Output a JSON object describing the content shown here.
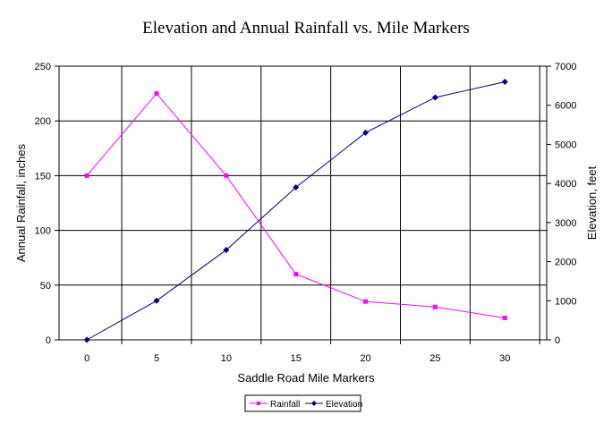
{
  "chart_data": {
    "type": "line",
    "title": "Elevation and Annual Rainfall vs. Mile Markers",
    "xlabel": "Saddle Road Mile Markers",
    "ylabel": "Annual Rainfall, inches",
    "y2label": "Elevation, feet",
    "x": [
      0,
      5,
      10,
      15,
      20,
      25,
      30
    ],
    "x_ticks": [
      0,
      5,
      10,
      15,
      20,
      25,
      30
    ],
    "xlim": [
      -2,
      33
    ],
    "ylim": [
      0,
      250
    ],
    "y_ticks": [
      0,
      50,
      100,
      150,
      200,
      250
    ],
    "y2lim": [
      0,
      7000
    ],
    "y2_ticks": [
      0,
      1000,
      2000,
      3000,
      4000,
      5000,
      6000,
      7000
    ],
    "grid": true,
    "legend_position": "bottom",
    "series": [
      {
        "name": "Rainfall",
        "axis": "left",
        "marker": "square",
        "color": "#FF00FF",
        "values": [
          150,
          225,
          150,
          60,
          35,
          30,
          20
        ]
      },
      {
        "name": "Elevation",
        "axis": "right",
        "marker": "diamond",
        "color": "#000080",
        "values": [
          0,
          1000,
          2300,
          3900,
          5300,
          6200,
          6600
        ]
      }
    ]
  }
}
